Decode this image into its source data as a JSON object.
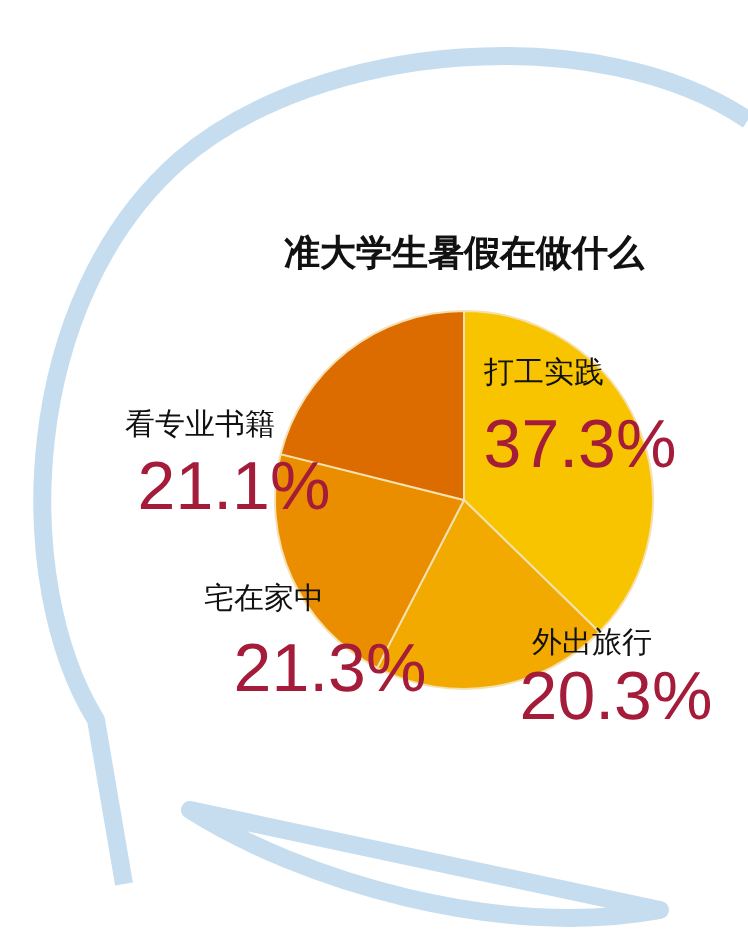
{
  "chart_data": {
    "type": "pie",
    "title": "准大学生暑假在做什么",
    "categories": [
      "打工实践",
      "外出旅行",
      "宅在家中",
      "看专业书籍"
    ],
    "values": [
      37.3,
      20.3,
      21.3,
      21.1
    ],
    "colors": [
      "#f8c400",
      "#f2aa00",
      "#ea8e00",
      "#dc6c00"
    ],
    "value_labels": [
      "37.3%",
      "20.3%",
      "21.3%",
      "21.1%"
    ],
    "legend": false
  }
}
